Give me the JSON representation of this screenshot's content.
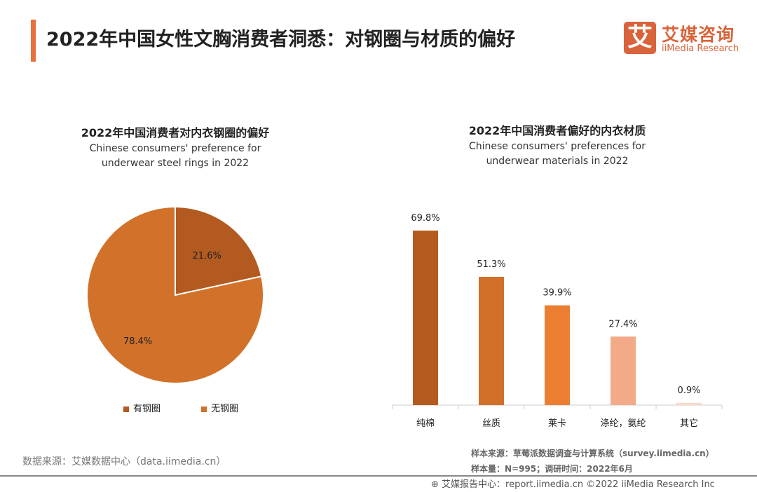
{
  "header": {
    "title": "2022年中国女性文胸消费者洞悉：对钢圈与材质的偏好",
    "accent_color": "#e8703a"
  },
  "logo": {
    "glyph": "艾",
    "cn": "艾媒咨询",
    "en": "iiMedia Research"
  },
  "chart_data": [
    {
      "type": "pie",
      "title": "2022年中国消费者对内衣钢圈的偏好",
      "subtitle": "Chinese consumers' preference for underwear steel rings in 2022",
      "slices": [
        {
          "name": "有钢圈",
          "value": 21.6,
          "label": "21.6%",
          "color": "#b35a20"
        },
        {
          "name": "无钢圈",
          "value": 78.4,
          "label": "78.4%",
          "color": "#d2722a"
        }
      ],
      "legend": "bottom"
    },
    {
      "type": "bar",
      "title": "2022年中国消费者偏好的内衣材质",
      "subtitle": "Chinese consumers' preferences for underwear materials in 2022",
      "categories": [
        "纯棉",
        "丝质",
        "莱卡",
        "涤纶，氨纶",
        "其它"
      ],
      "values": [
        69.8,
        51.3,
        39.9,
        27.4,
        0.9
      ],
      "labels": [
        "69.8%",
        "51.3%",
        "39.9%",
        "27.4%",
        "0.9%"
      ],
      "colors": [
        "#b55a1e",
        "#d2702a",
        "#ec7e32",
        "#f2aa88",
        "#f8d9c8"
      ],
      "ylim": [
        0,
        70
      ]
    }
  ],
  "sources": {
    "left": "数据来源：艾媒数据中心（data.iimedia.cn）",
    "sample_source": "样本来源：草莓派数据调查与计算系统（survey.iimedia.cn）",
    "sample_size": "样本量：N=995；调研时间：2022年6月"
  },
  "footer": "艾媒报告中心：report.iimedia.cn   ©2022  iiMedia Research  Inc"
}
